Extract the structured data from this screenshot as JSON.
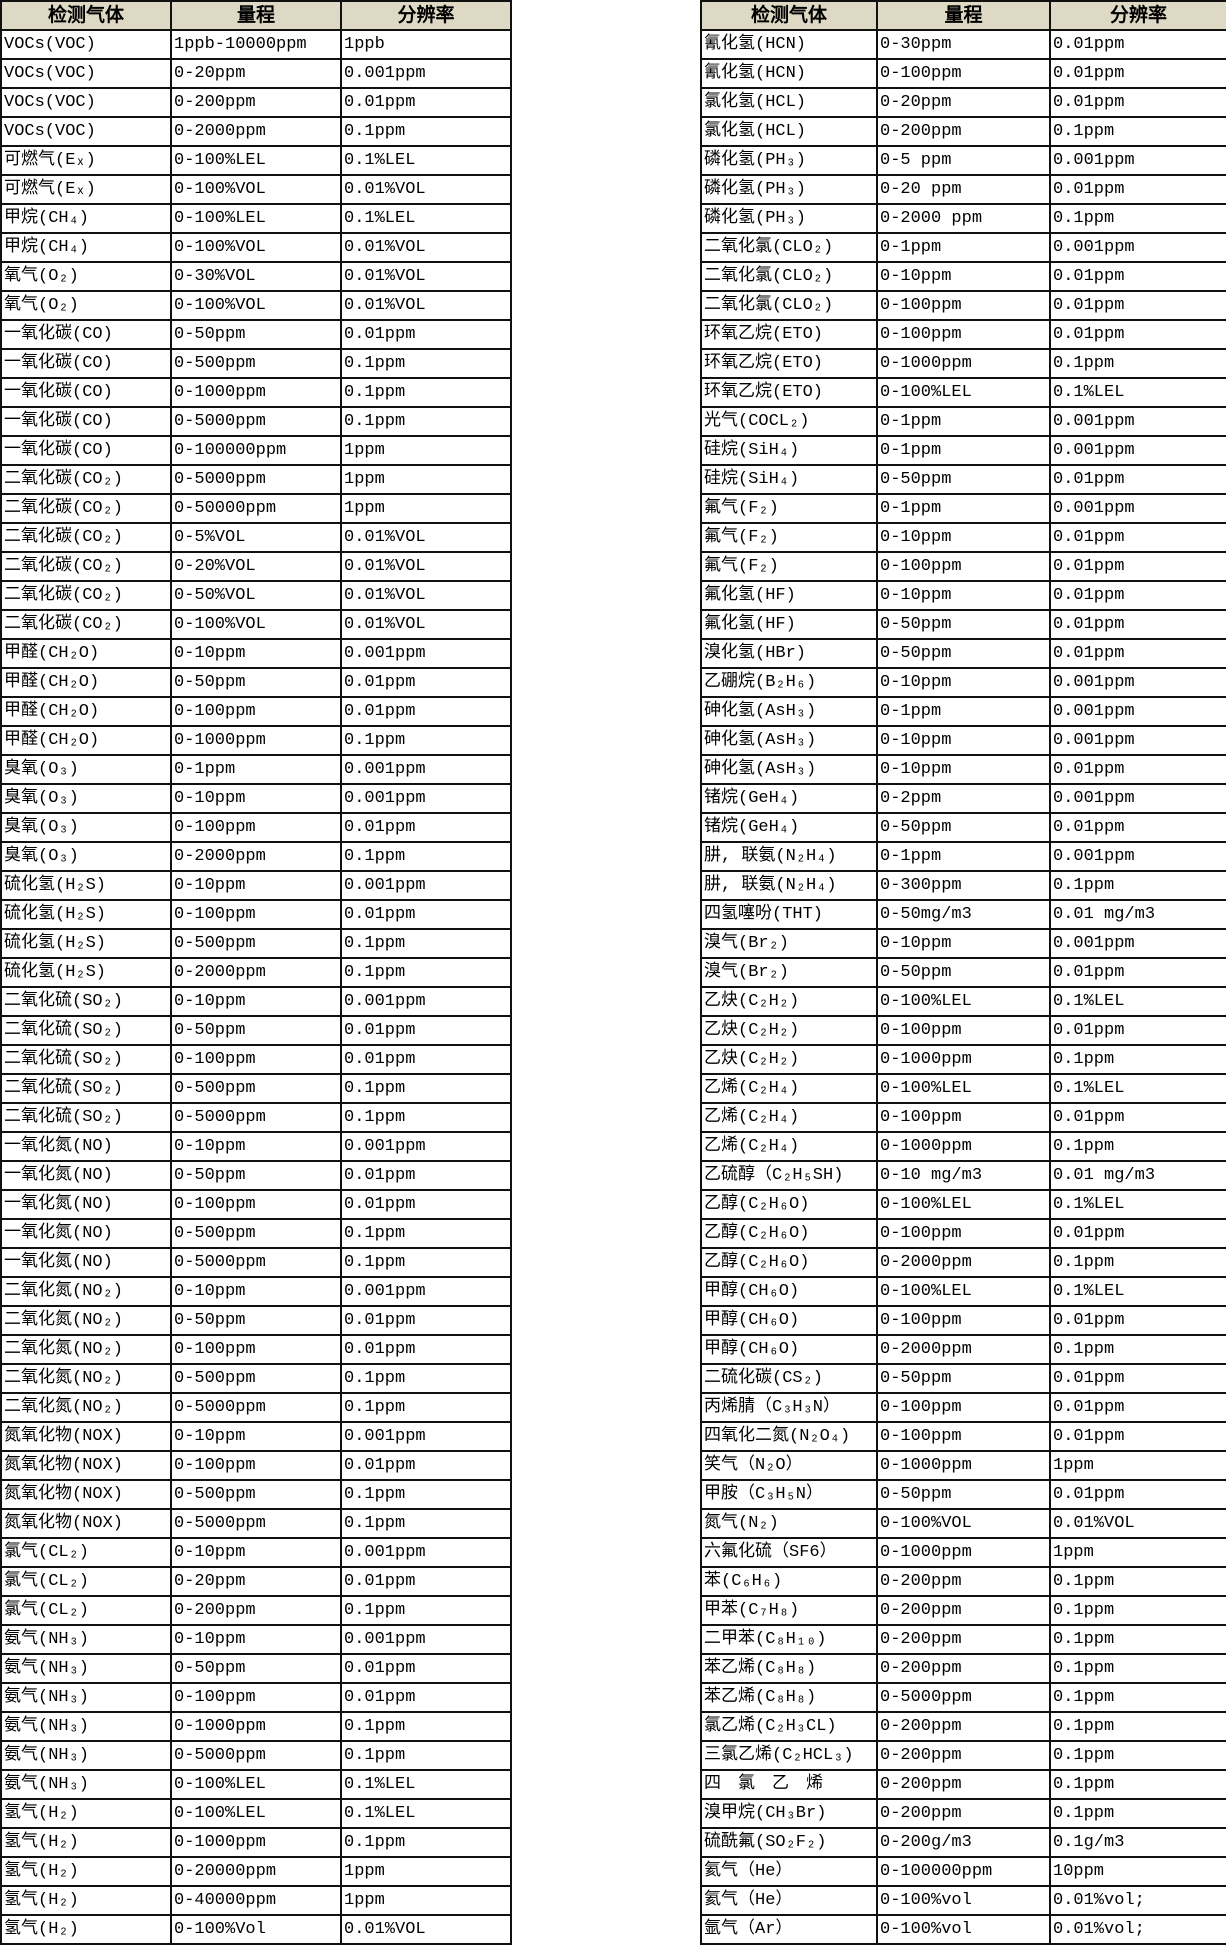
{
  "headers": [
    "检测气体",
    "量程",
    "分辨率"
  ],
  "colors": {
    "header_bg": "#ddd9c4",
    "border": "#111111"
  },
  "left_rows": [
    [
      "VOCs(VOC)",
      "1ppb-10000ppm",
      "1ppb"
    ],
    [
      "VOCs(VOC)",
      "0-20ppm",
      "0.001ppm"
    ],
    [
      "VOCs(VOC)",
      "0-200ppm",
      "0.01ppm"
    ],
    [
      "VOCs(VOC)",
      "0-2000ppm",
      "0.1ppm"
    ],
    [
      "可燃气(Eₓ)",
      "0-100%LEL",
      "0.1%LEL"
    ],
    [
      "可燃气(Eₓ)",
      "0-100%VOL",
      "0.01%VOL"
    ],
    [
      "甲烷(CH₄)",
      "0-100%LEL",
      "0.1%LEL"
    ],
    [
      "甲烷(CH₄)",
      "0-100%VOL",
      "0.01%VOL"
    ],
    [
      "氧气(O₂)",
      "0-30%VOL",
      "0.01%VOL"
    ],
    [
      "氧气(O₂)",
      "0-100%VOL",
      "0.01%VOL"
    ],
    [
      "一氧化碳(CO)",
      "0-50ppm",
      "0.01ppm"
    ],
    [
      "一氧化碳(CO)",
      "0-500ppm",
      "0.1ppm"
    ],
    [
      "一氧化碳(CO)",
      "0-1000ppm",
      "0.1ppm"
    ],
    [
      "一氧化碳(CO)",
      "0-5000ppm",
      "0.1ppm"
    ],
    [
      "一氧化碳(CO)",
      "0-100000ppm",
      "1ppm"
    ],
    [
      "二氧化碳(CO₂)",
      "0-5000ppm",
      "1ppm"
    ],
    [
      "二氧化碳(CO₂)",
      "0-50000ppm",
      "1ppm"
    ],
    [
      "二氧化碳(CO₂)",
      "0-5%VOL",
      "0.01%VOL"
    ],
    [
      "二氧化碳(CO₂)",
      "0-20%VOL",
      "0.01%VOL"
    ],
    [
      "二氧化碳(CO₂)",
      "0-50%VOL",
      "0.01%VOL"
    ],
    [
      "二氧化碳(CO₂)",
      "0-100%VOL",
      "0.01%VOL"
    ],
    [
      "甲醛(CH₂O)",
      "0-10ppm",
      "0.001ppm"
    ],
    [
      "甲醛(CH₂O)",
      "0-50ppm",
      "0.01ppm"
    ],
    [
      "甲醛(CH₂O)",
      "0-100ppm",
      "0.01ppm"
    ],
    [
      "甲醛(CH₂O)",
      "0-1000ppm",
      "0.1ppm"
    ],
    [
      "臭氧(O₃)",
      "0-1ppm",
      "0.001ppm"
    ],
    [
      "臭氧(O₃)",
      "0-10ppm",
      "0.001ppm"
    ],
    [
      "臭氧(O₃)",
      "0-100ppm",
      "0.01ppm"
    ],
    [
      "臭氧(O₃)",
      "0-2000ppm",
      "0.1ppm"
    ],
    [
      "硫化氢(H₂S)",
      "0-10ppm",
      "0.001ppm"
    ],
    [
      "硫化氢(H₂S)",
      "0-100ppm",
      "0.01ppm"
    ],
    [
      "硫化氢(H₂S)",
      "0-500ppm",
      "0.1ppm"
    ],
    [
      "硫化氢(H₂S)",
      "0-2000ppm",
      "0.1ppm"
    ],
    [
      "二氧化硫(SO₂)",
      "0-10ppm",
      "0.001ppm"
    ],
    [
      "二氧化硫(SO₂)",
      "0-50ppm",
      "0.01ppm"
    ],
    [
      "二氧化硫(SO₂)",
      "0-100ppm",
      "0.01ppm"
    ],
    [
      "二氧化硫(SO₂)",
      "0-500ppm",
      "0.1ppm"
    ],
    [
      "二氧化硫(SO₂)",
      "0-5000ppm",
      "0.1ppm"
    ],
    [
      "一氧化氮(NO)",
      "0-10ppm",
      "0.001ppm"
    ],
    [
      "一氧化氮(NO)",
      "0-50ppm",
      "0.01ppm"
    ],
    [
      "一氧化氮(NO)",
      "0-100ppm",
      "0.01ppm"
    ],
    [
      "一氧化氮(NO)",
      "0-500ppm",
      "0.1ppm"
    ],
    [
      "一氧化氮(NO)",
      "0-5000ppm",
      "0.1ppm"
    ],
    [
      "二氧化氮(NO₂)",
      "0-10ppm",
      "0.001ppm"
    ],
    [
      "二氧化氮(NO₂)",
      "0-50ppm",
      "0.01ppm"
    ],
    [
      "二氧化氮(NO₂)",
      "0-100ppm",
      "0.01ppm"
    ],
    [
      "二氧化氮(NO₂)",
      "0-500ppm",
      "0.1ppm"
    ],
    [
      "二氧化氮(NO₂)",
      "0-5000ppm",
      "0.1ppm"
    ],
    [
      "氮氧化物(NOX)",
      "0-10ppm",
      "0.001ppm"
    ],
    [
      "氮氧化物(NOX)",
      "0-100ppm",
      "0.01ppm"
    ],
    [
      "氮氧化物(NOX)",
      "0-500ppm",
      "0.1ppm"
    ],
    [
      "氮氧化物(NOX)",
      "0-5000ppm",
      "0.1ppm"
    ],
    [
      "氯气(CL₂)",
      "0-10ppm",
      "0.001ppm"
    ],
    [
      "氯气(CL₂)",
      "0-20ppm",
      "0.01ppm"
    ],
    [
      "氯气(CL₂)",
      "0-200ppm",
      "0.1ppm"
    ],
    [
      "氨气(NH₃)",
      "0-10ppm",
      "0.001ppm"
    ],
    [
      "氨气(NH₃)",
      "0-50ppm",
      "0.01ppm"
    ],
    [
      "氨气(NH₃)",
      "0-100ppm",
      "0.01ppm"
    ],
    [
      "氨气(NH₃)",
      "0-1000ppm",
      "0.1ppm"
    ],
    [
      "氨气(NH₃)",
      "0-5000ppm",
      "0.1ppm"
    ],
    [
      "氨气(NH₃)",
      "0-100%LEL",
      "0.1%LEL"
    ],
    [
      "氢气(H₂)",
      "0-100%LEL",
      "0.1%LEL"
    ],
    [
      "氢气(H₂)",
      "0-1000ppm",
      "0.1ppm"
    ],
    [
      "氢气(H₂)",
      "0-20000ppm",
      "1ppm"
    ],
    [
      "氢气(H₂)",
      "0-40000ppm",
      "1ppm"
    ],
    [
      "氢气(H₂)",
      "0-100%Vol",
      "0.01%VOL"
    ]
  ],
  "right_rows": [
    [
      "氰化氢(HCN)",
      "0-30ppm",
      "0.01ppm"
    ],
    [
      "氰化氢(HCN)",
      "0-100ppm",
      "0.01ppm"
    ],
    [
      "氯化氢(HCL)",
      "0-20ppm",
      "0.01ppm"
    ],
    [
      "氯化氢(HCL)",
      "0-200ppm",
      "0.1ppm"
    ],
    [
      "磷化氢(PH₃)",
      "0-5 ppm",
      "0.001ppm"
    ],
    [
      "磷化氢(PH₃)",
      "0-20 ppm",
      "0.01ppm"
    ],
    [
      "磷化氢(PH₃)",
      "0-2000 ppm",
      "0.1ppm"
    ],
    [
      "二氧化氯(CLO₂)",
      "0-1ppm",
      "0.001ppm"
    ],
    [
      "二氧化氯(CLO₂)",
      "0-10ppm",
      "0.01ppm"
    ],
    [
      "二氧化氯(CLO₂)",
      "0-100ppm",
      "0.01ppm"
    ],
    [
      "环氧乙烷(ETO)",
      "0-100ppm",
      "0.01ppm"
    ],
    [
      "环氧乙烷(ETO)",
      "0-1000ppm",
      "0.1ppm"
    ],
    [
      "环氧乙烷(ETO)",
      "0-100%LEL",
      "0.1%LEL"
    ],
    [
      "光气(COCL₂)",
      "0-1ppm",
      "0.001ppm"
    ],
    [
      "硅烷(SiH₄)",
      "0-1ppm",
      "0.001ppm"
    ],
    [
      "硅烷(SiH₄)",
      "0-50ppm",
      "0.01ppm"
    ],
    [
      "氟气(F₂)",
      "0-1ppm",
      "0.001ppm"
    ],
    [
      "氟气(F₂)",
      "0-10ppm",
      "0.01ppm"
    ],
    [
      "氟气(F₂)",
      "0-100ppm",
      "0.01ppm"
    ],
    [
      "氟化氢(HF)",
      "0-10ppm",
      "0.01ppm"
    ],
    [
      "氟化氢(HF)",
      "0-50ppm",
      "0.01ppm"
    ],
    [
      "溴化氢(HBr)",
      "0-50ppm",
      "0.01ppm"
    ],
    [
      "乙硼烷(B₂H₆)",
      "0-10ppm",
      "0.001ppm"
    ],
    [
      "砷化氢(AsH₃)",
      "0-1ppm",
      "0.001ppm"
    ],
    [
      "砷化氢(AsH₃)",
      "0-10ppm",
      "0.001ppm"
    ],
    [
      "砷化氢(AsH₃)",
      "0-10ppm",
      "0.01ppm"
    ],
    [
      "锗烷(GeH₄)",
      "0-2ppm",
      "0.001ppm"
    ],
    [
      "锗烷(GeH₄)",
      "0-50ppm",
      "0.01ppm"
    ],
    [
      "肼, 联氨(N₂H₄)",
      "0-1ppm",
      "0.001ppm"
    ],
    [
      "肼, 联氨(N₂H₄)",
      "0-300ppm",
      "0.1ppm"
    ],
    [
      "四氢噻吩(THT)",
      "0-50mg/m3",
      "0.01 mg/m3"
    ],
    [
      "溴气(Br₂)",
      "0-10ppm",
      "0.001ppm"
    ],
    [
      "溴气(Br₂)",
      "0-50ppm",
      "0.01ppm"
    ],
    [
      "乙炔(C₂H₂)",
      "0-100%LEL",
      "0.1%LEL"
    ],
    [
      "乙炔(C₂H₂)",
      "0-100ppm",
      "0.01ppm"
    ],
    [
      "乙炔(C₂H₂)",
      "0-1000ppm",
      "0.1ppm"
    ],
    [
      "乙烯(C₂H₄)",
      "0-100%LEL",
      "0.1%LEL"
    ],
    [
      "乙烯(C₂H₄)",
      "0-100ppm",
      "0.01ppm"
    ],
    [
      "乙烯(C₂H₄)",
      "0-1000ppm",
      "0.1ppm"
    ],
    [
      "乙硫醇（C₂H₅SH)",
      "0-10 mg/m3",
      "0.01 mg/m3"
    ],
    [
      "乙醇(C₂H₆O)",
      "0-100%LEL",
      "0.1%LEL"
    ],
    [
      "乙醇(C₂H₆O)",
      "0-100ppm",
      "0.01ppm"
    ],
    [
      "乙醇(C₂H₆O)",
      "0-2000ppm",
      "0.1ppm"
    ],
    [
      "甲醇(CH₆O)",
      "0-100%LEL",
      "0.1%LEL"
    ],
    [
      "甲醇(CH₆O)",
      "0-100ppm",
      "0.01ppm"
    ],
    [
      "甲醇(CH₆O)",
      "0-2000ppm",
      "0.1ppm"
    ],
    [
      "二硫化碳(CS₂)",
      "0-50ppm",
      "0.01ppm"
    ],
    [
      "丙烯腈（C₃H₃N）",
      "0-100ppm",
      "0.01ppm"
    ],
    [
      "四氧化二氮(N₂O₄)",
      "0-100ppm",
      "0.01ppm"
    ],
    [
      "笑气（N₂O）",
      "0-1000ppm",
      "1ppm"
    ],
    [
      "甲胺（C₃H₅N）",
      "0-50ppm",
      "0.01ppm"
    ],
    [
      "氮气(N₂)",
      "0-100%VOL",
      "0.01%VOL"
    ],
    [
      "六氟化硫（SF6）",
      "0-1000ppm",
      "1ppm"
    ],
    [
      "苯(C₆H₆)",
      "0-200ppm",
      "0.1ppm"
    ],
    [
      "甲苯(C₇H₈)",
      "0-200ppm",
      "0.1ppm"
    ],
    [
      "二甲苯(C₈H₁₀)",
      "0-200ppm",
      "0.1ppm"
    ],
    [
      "苯乙烯(C₈H₈)",
      "0-200ppm",
      "0.1ppm"
    ],
    [
      "苯乙烯(C₈H₈)",
      "0-5000ppm",
      "0.1ppm"
    ],
    [
      "氯乙烯(C₂H₃CL)",
      "0-200ppm",
      "0.1ppm"
    ],
    [
      "三氯乙烯(C₂HCL₃)",
      "0-200ppm",
      "0.1ppm"
    ],
    [
      "四　氯　乙　烯",
      "0-200ppm",
      "0.1ppm"
    ],
    [
      "溴甲烷(CH₃Br)",
      "0-200ppm",
      "0.1ppm"
    ],
    [
      "硫酰氟(SO₂F₂)",
      "0-200g/m3",
      "0.1g/m3"
    ],
    [
      "氦气（He）",
      "0-100000ppm",
      "10ppm"
    ],
    [
      "氦气（He）",
      "0-100%vol",
      "0.01%vol;"
    ],
    [
      "氩气（Ar）",
      "0-100%vol",
      "0.01%vol;"
    ]
  ]
}
